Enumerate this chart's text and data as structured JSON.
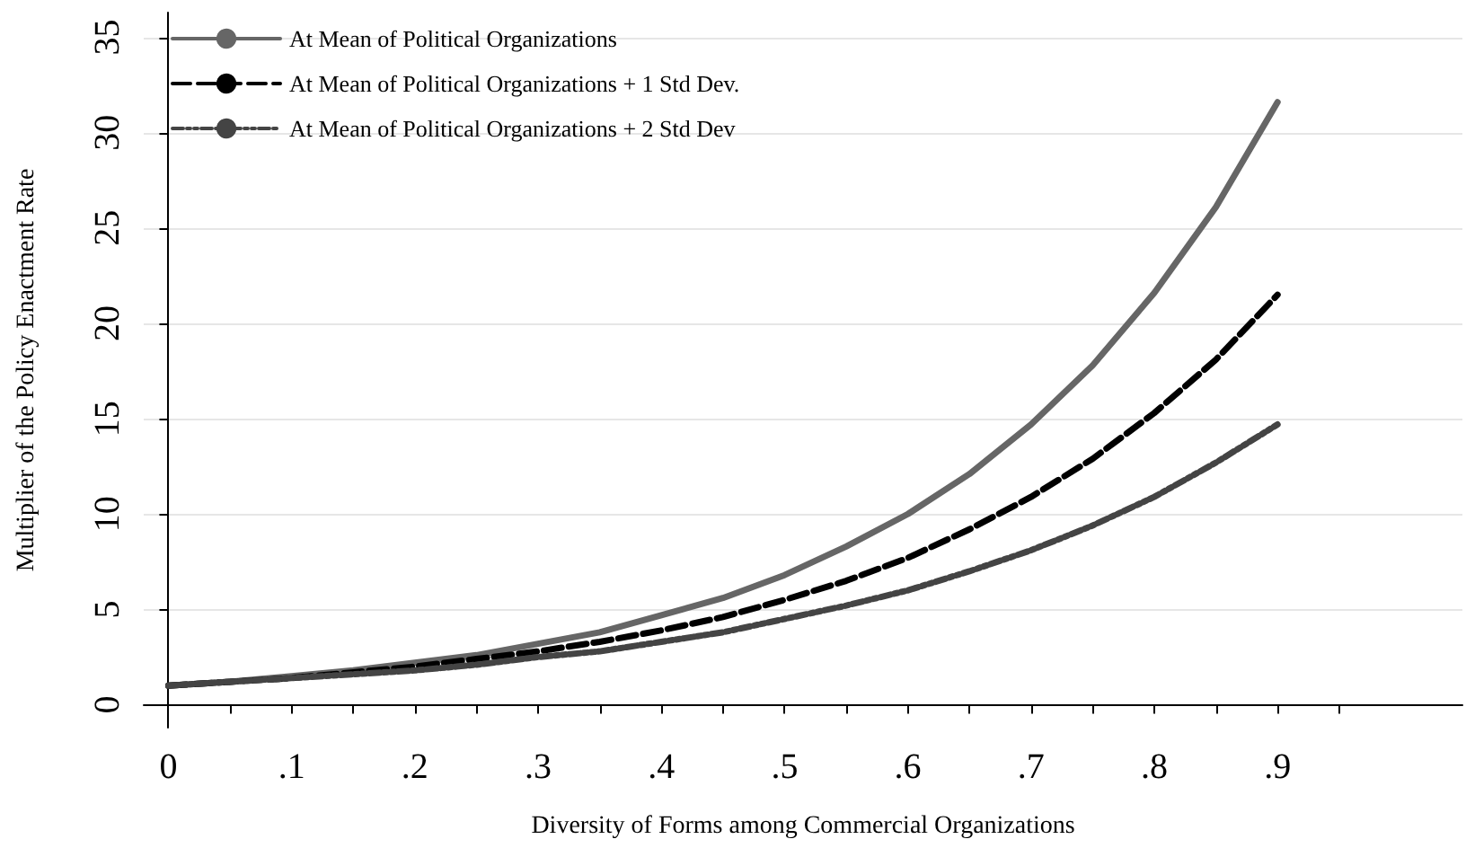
{
  "chart_data": {
    "type": "line",
    "xlabel": "Diversity of Forms among Commercial Organizations",
    "ylabel": "Multiplier of the Policy Enactment Rate",
    "x": [
      0,
      0.05,
      0.1,
      0.15,
      0.2,
      0.25,
      0.3,
      0.35,
      0.4,
      0.45,
      0.5,
      0.55,
      0.6,
      0.65,
      0.7,
      0.75,
      0.8,
      0.85,
      0.9
    ],
    "series": [
      {
        "name": "At Mean of Political Organizations",
        "color": "#666666",
        "line_style": "solid",
        "values": [
          1,
          1.2,
          1.5,
          1.8,
          2.2,
          2.6,
          3.2,
          3.8,
          4.7,
          5.6,
          6.8,
          8.3,
          10.0,
          12.1,
          14.7,
          17.8,
          21.6,
          26.1,
          31.6
        ]
      },
      {
        "name": "At Mean of Political Organizations + 1 Std Dev.",
        "color": "#000000",
        "line_style": "dashed",
        "values": [
          1,
          1.2,
          1.4,
          1.7,
          2.0,
          2.4,
          2.8,
          3.3,
          3.9,
          4.6,
          5.5,
          6.5,
          7.7,
          9.2,
          10.9,
          12.9,
          15.3,
          18.1,
          21.5
        ]
      },
      {
        "name": "At Mean of Political Organizations + 2 Std Dev",
        "color": "#444444",
        "line_style": "dotted",
        "values": [
          1,
          1.2,
          1.4,
          1.6,
          1.8,
          2.1,
          2.5,
          2.8,
          3.3,
          3.8,
          4.5,
          5.2,
          6.0,
          7.0,
          8.1,
          9.4,
          10.9,
          12.7,
          14.7
        ]
      }
    ],
    "xlim": [
      -0.02,
      1.05
    ],
    "xticks": [
      0,
      {
        "value": 0.05,
        "label": null
      },
      {
        "value": 0.1,
        "label": ".1"
      },
      {
        "value": 0.15,
        "label": null
      },
      {
        "value": 0.2,
        "label": ".2"
      },
      {
        "value": 0.25,
        "label": null
      },
      {
        "value": 0.3,
        "label": ".3"
      },
      {
        "value": 0.35,
        "label": null
      },
      {
        "value": 0.4,
        "label": ".4"
      },
      {
        "value": 0.45,
        "label": null
      },
      {
        "value": 0.5,
        "label": ".5"
      },
      {
        "value": 0.55,
        "label": null
      },
      {
        "value": 0.6,
        "label": ".6"
      },
      {
        "value": 0.65,
        "label": null
      },
      {
        "value": 0.7,
        "label": ".7"
      },
      {
        "value": 0.75,
        "label": null
      },
      {
        "value": 0.8,
        "label": ".8"
      },
      {
        "value": 0.85,
        "label": null
      },
      {
        "value": 0.9,
        "label": ".9"
      },
      {
        "value": 0.95,
        "label": null
      }
    ],
    "ylim": [
      -1.2,
      36.3
    ],
    "yticks": [
      0,
      5,
      10,
      15,
      20,
      25,
      30,
      35
    ],
    "grid": "y",
    "legend": "top left",
    "marker": "none"
  }
}
